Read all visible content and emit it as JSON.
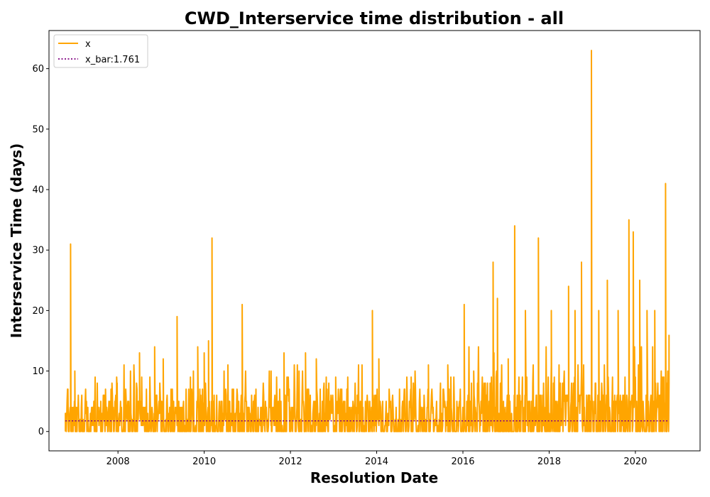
{
  "chart_data": {
    "type": "line",
    "title": "CWD_Interservice time distribution - all",
    "xlabel": "Resolution Date",
    "ylabel": "Interservice Time (days)",
    "xlim": [
      2006.4,
      2021.5
    ],
    "ylim": [
      -3.2,
      66.3
    ],
    "x_ticks": [
      2008,
      2010,
      2012,
      2014,
      2016,
      2018,
      2020
    ],
    "y_ticks": [
      0,
      10,
      20,
      30,
      40,
      50,
      60
    ],
    "grid": false,
    "legend_position": "upper left",
    "series": [
      {
        "name": "x",
        "color": "#ffa500",
        "style": "solid",
        "peaks": [
          [
            2006.78,
            3
          ],
          [
            2006.9,
            31
          ],
          [
            2007.0,
            10
          ],
          [
            2007.25,
            7
          ],
          [
            2007.6,
            5
          ],
          [
            2007.98,
            8
          ],
          [
            2008.5,
            13
          ],
          [
            2008.85,
            14
          ],
          [
            2009.05,
            12
          ],
          [
            2009.37,
            19
          ],
          [
            2009.85,
            14
          ],
          [
            2010.0,
            13
          ],
          [
            2010.1,
            15
          ],
          [
            2010.18,
            32
          ],
          [
            2010.55,
            11
          ],
          [
            2010.88,
            21
          ],
          [
            2011.55,
            10
          ],
          [
            2011.85,
            13
          ],
          [
            2012.2,
            10
          ],
          [
            2012.35,
            13
          ],
          [
            2012.6,
            12
          ],
          [
            2013.05,
            9
          ],
          [
            2013.55,
            6
          ],
          [
            2013.9,
            20
          ],
          [
            2014.05,
            12
          ],
          [
            2014.8,
            9
          ],
          [
            2015.2,
            11
          ],
          [
            2015.65,
            11
          ],
          [
            2016.03,
            21
          ],
          [
            2016.25,
            10
          ],
          [
            2016.7,
            28
          ],
          [
            2016.8,
            22
          ],
          [
            2017.05,
            12
          ],
          [
            2017.2,
            34
          ],
          [
            2017.45,
            20
          ],
          [
            2017.75,
            32
          ],
          [
            2018.05,
            20
          ],
          [
            2018.45,
            24
          ],
          [
            2018.6,
            20
          ],
          [
            2018.75,
            28
          ],
          [
            2018.98,
            63
          ],
          [
            2019.15,
            20
          ],
          [
            2019.35,
            25
          ],
          [
            2019.6,
            20
          ],
          [
            2019.85,
            35
          ],
          [
            2019.95,
            33
          ],
          [
            2020.1,
            25
          ],
          [
            2020.27,
            20
          ],
          [
            2020.45,
            20
          ],
          [
            2020.7,
            41
          ],
          [
            2020.78,
            16
          ]
        ]
      },
      {
        "name": "x_bar:1.761",
        "color": "#800080",
        "style": "dotted",
        "x": [
          2006.78,
          2020.78
        ],
        "values": [
          1.761,
          1.761
        ]
      }
    ]
  }
}
